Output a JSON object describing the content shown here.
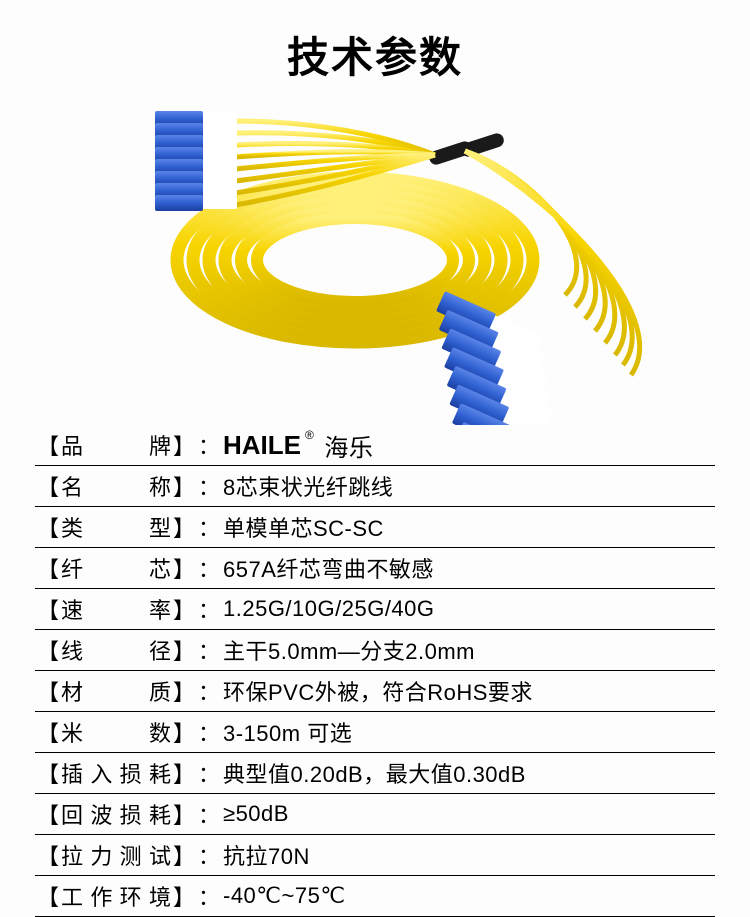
{
  "title": "技术参数",
  "hero": {
    "cable_color": "#f7d400",
    "cable_highlight": "#fff07a",
    "cable_shadow": "#d9b800",
    "connector_body": "#2e5fd0",
    "connector_dark": "#1c3fa0",
    "connector_white": "#ffffff",
    "boot_black": "#1a1a1a",
    "background": "#fdfdfd"
  },
  "brand": {
    "logo": "HAILE",
    "reg": "®",
    "cn": "海乐"
  },
  "specs": [
    {
      "label_chars": [
        "品",
        "牌"
      ],
      "value_is_brand": true
    },
    {
      "label_chars": [
        "名",
        "称"
      ],
      "value": "8芯束状光纤跳线"
    },
    {
      "label_chars": [
        "类",
        "型"
      ],
      "value": "单模单芯SC-SC"
    },
    {
      "label_chars": [
        "纤",
        "芯"
      ],
      "value": "657A纤芯弯曲不敏感"
    },
    {
      "label_chars": [
        "速",
        "率"
      ],
      "value": "1.25G/10G/25G/40G"
    },
    {
      "label_chars": [
        "线",
        "径"
      ],
      "value": "主干5.0mm—分支2.0mm"
    },
    {
      "label_chars": [
        "材",
        "质"
      ],
      "value": "环保PVC外被，符合RoHS要求"
    },
    {
      "label_chars": [
        "米",
        "数"
      ],
      "value": "3-150m 可选"
    },
    {
      "label_chars": [
        "插",
        "入",
        "损",
        "耗"
      ],
      "value": "典型值0.20dB，最大值0.30dB"
    },
    {
      "label_chars": [
        "回",
        "波",
        "损",
        "耗"
      ],
      "value": "≥50dB"
    },
    {
      "label_chars": [
        "拉",
        "力",
        "测",
        "试"
      ],
      "value": "抗拉70N"
    },
    {
      "label_chars": [
        "工",
        "作",
        "环",
        "境"
      ],
      "value": "-40℃~75℃"
    }
  ],
  "bracket_l": "【",
  "bracket_r": "】",
  "colon": "："
}
